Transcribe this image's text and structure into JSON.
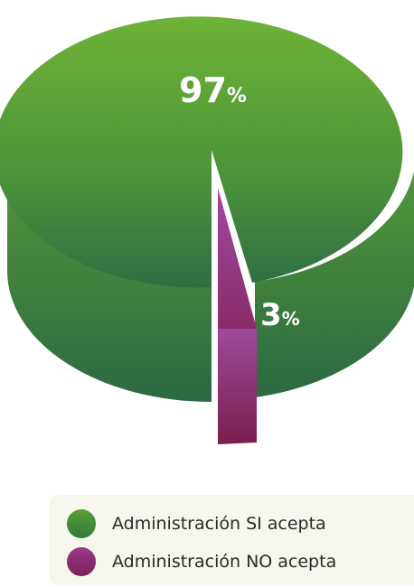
{
  "chart_data": {
    "type": "pie",
    "style": "3d-exploded",
    "slices": [
      {
        "name": "Administración SI acepta",
        "value": 97,
        "label_value": "97",
        "label_unit": "%",
        "color": "#5a9e36"
      },
      {
        "name": "Administración NO acepta",
        "value": 3,
        "label_value": "3",
        "label_unit": "%",
        "color": "#9b3a8a"
      }
    ],
    "legend": {
      "position": "bottom-right",
      "items": [
        {
          "label": "Administración SI acepta",
          "color": "#5a9e36"
        },
        {
          "label": "Administración NO acepta",
          "color": "#9b3a8a"
        }
      ]
    },
    "title": ""
  }
}
